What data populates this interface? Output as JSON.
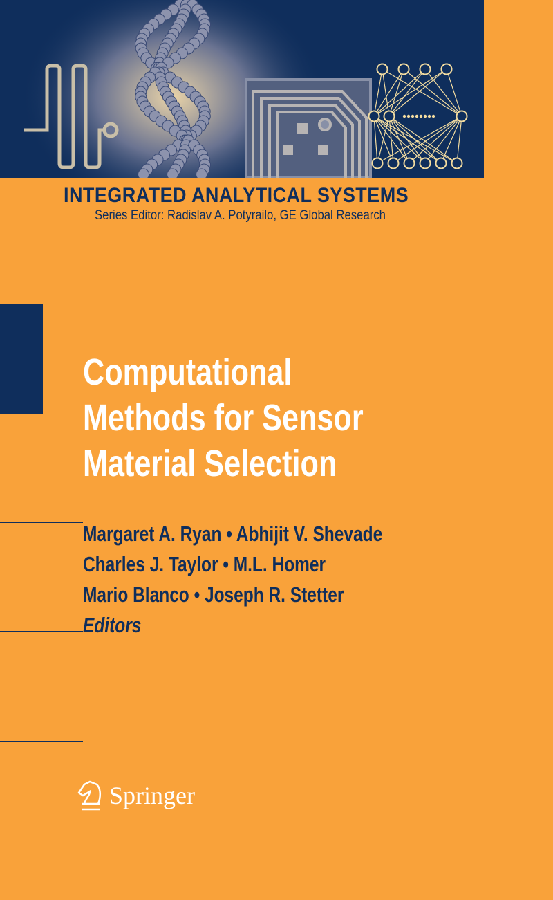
{
  "series": {
    "title": "INTEGRATED ANALYTICAL SYSTEMS",
    "editor": "Series Editor: Radislav A. Potyrailo, GE Global Research"
  },
  "book": {
    "title_lines": [
      "Computational",
      "Methods for Sensor",
      "Material Selection"
    ],
    "author_lines": [
      "Margaret A. Ryan • Abhijit V. Shevade",
      "Charles J. Taylor • M.L. Homer",
      "Mario Blanco • Joseph R. Stetter"
    ],
    "role": "Editors"
  },
  "publisher": {
    "name": "Springer",
    "logo_icon": "knight-horse-icon"
  },
  "colors": {
    "background": "#f9a23a",
    "navy": "#0f2e5c",
    "art_highlight": "#f3dca0"
  }
}
